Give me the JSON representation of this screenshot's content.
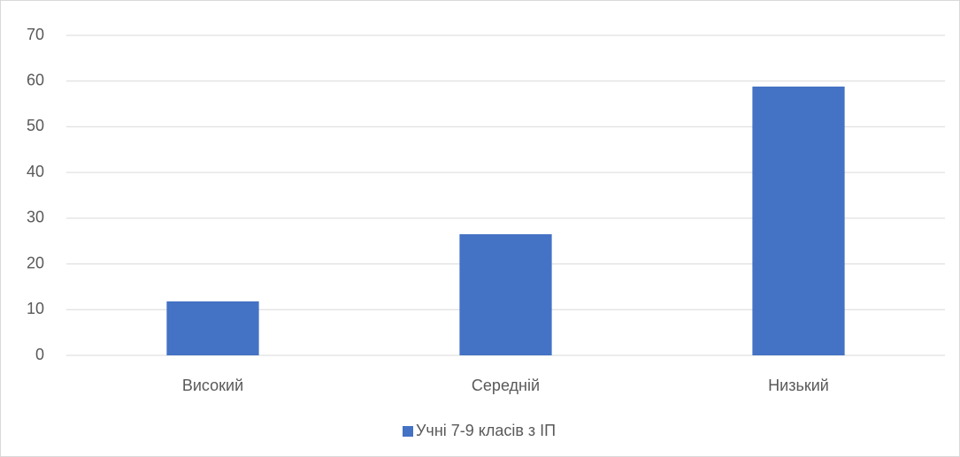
{
  "chart_data": {
    "type": "bar",
    "categories": [
      "Високий",
      "Середній",
      "Низький"
    ],
    "series": [
      {
        "name": "Учні 7-9 класів з ІП",
        "color": "#4472c4",
        "values": [
          11.8,
          26.5,
          58.8
        ]
      }
    ],
    "ylim": [
      0,
      70
    ],
    "yticks": [
      0,
      10,
      20,
      30,
      40,
      50,
      60,
      70
    ],
    "grid": true,
    "legend": "bottom"
  }
}
